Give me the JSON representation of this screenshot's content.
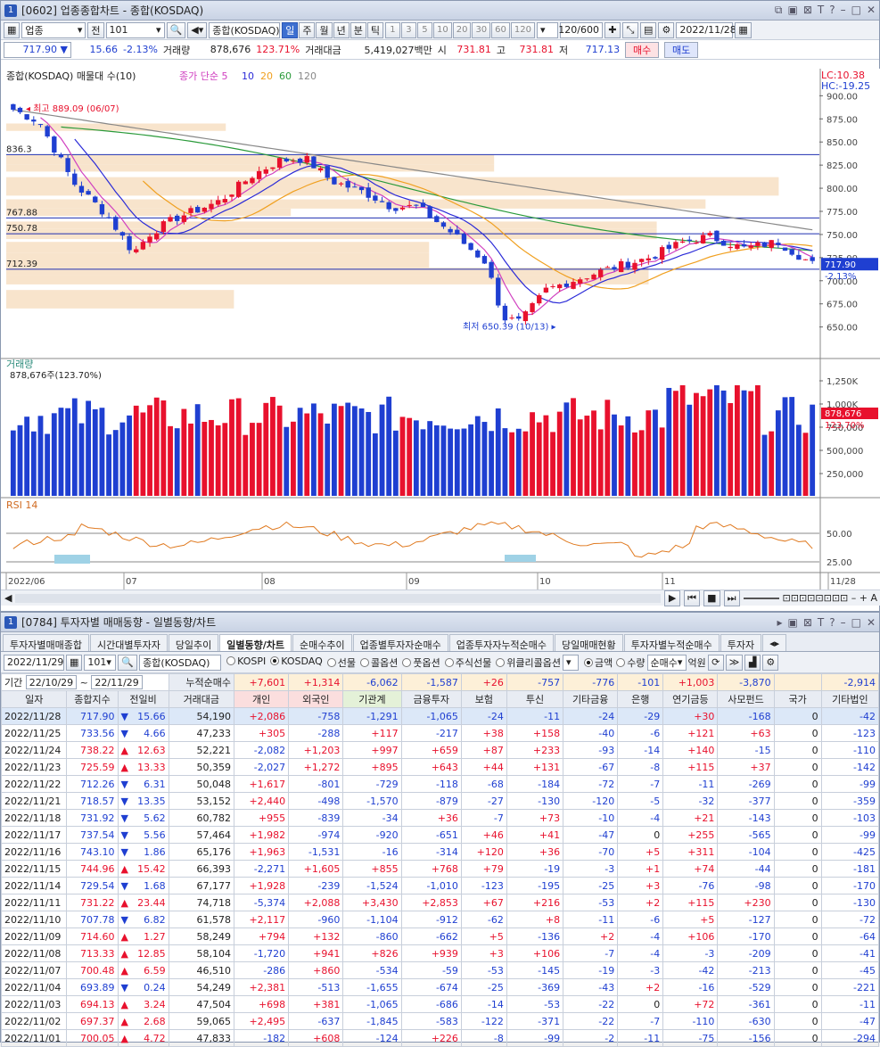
{
  "chart_window": {
    "id": "[0602]",
    "title": "업종종합차트 - 종합(KOSDAQ)"
  },
  "toolbar": {
    "category": "업종",
    "scope": "전",
    "code": "101",
    "name": "종합(KOSDAQ)",
    "periods": [
      "일",
      "주",
      "월",
      "년",
      "분",
      "틱"
    ],
    "active_period": "일",
    "minutes": [
      "1",
      "3",
      "5",
      "10",
      "20",
      "30",
      "60",
      "120"
    ],
    "count": "120/600",
    "date": "2022/11/28"
  },
  "quote": {
    "price": "717.90",
    "change": "15.66",
    "rate": "-2.13%",
    "vol_label": "거래량",
    "vol": "878,676",
    "vol_rate": "123.71%",
    "amt_label": "거래대금",
    "amt": "5,419,027백만",
    "open_label": "시",
    "open": "731.81",
    "high_label": "고",
    "high": "731.81",
    "low_label": "저",
    "low": "717.13",
    "buy": "매수",
    "sell": "매도"
  },
  "price_panel": {
    "legend_name": "종합(KOSDAQ) 매물대 수(10)",
    "ma_label": "종가 단순 5",
    "ma": [
      "10",
      "20",
      "60",
      "120"
    ],
    "lc": "LC:10.38",
    "hc": "HC:-19.25",
    "high_note": "최고 889.09 (06/07)",
    "low_note": "최저 650.39 (10/13)",
    "levels": [
      "836.3",
      "767.88",
      "750.78",
      "712.39"
    ],
    "last": "717.90",
    "last_rate": "-2.13%"
  },
  "volume_panel": {
    "label": "거래량",
    "note": "878,676주(123.70%)",
    "last": "878,676",
    "last_rate": "123.70%"
  },
  "rsi_panel": {
    "label": "RSI 14"
  },
  "x_labels": [
    "2022/06",
    "07",
    "08",
    "09",
    "10",
    "11",
    "11/28"
  ],
  "chart_data": {
    "type": "candlestick",
    "ylim": [
      640,
      910
    ],
    "yticks": [
      650,
      675,
      700,
      725,
      750,
      775,
      800,
      825,
      850,
      875,
      900
    ],
    "volume_ticks": [
      "1,250K",
      "1,000K",
      "750,000",
      "500,000",
      "250,000"
    ],
    "rsi_ticks": [
      "50.00",
      "25.00"
    ]
  },
  "flow_window": {
    "id": "[0784]",
    "title": "투자자별 매매동향 - 일별동향/차트"
  },
  "flow_tabs": [
    "투자자별매매종합",
    "시간대별투자자",
    "당일추이",
    "일별동향/차트",
    "순매수추이",
    "업종별투자자순매수",
    "업종투자자누적순매수",
    "당일매매현황",
    "투자자별누적순매수",
    "투자자"
  ],
  "flow_active": "일별동향/차트",
  "flow_toolbar": {
    "date": "2022/11/29",
    "code": "101",
    "name": "종합(KOSDAQ)",
    "markets": [
      "KOSPI",
      "KOSDAQ",
      "선물",
      "콜옵션",
      "풋옵션",
      "주식선물",
      "위클리콜옵션"
    ],
    "active_market": "KOSDAQ",
    "units": [
      "금액",
      "수량"
    ],
    "unit_active": "금액",
    "mode": "순매수",
    "unit": "억원"
  },
  "period": {
    "label": "기간",
    "from": "22/10/29",
    "to": "22/11/29",
    "sum_label": "누적순매수",
    "sums": [
      "+7,601",
      "+1,314",
      "-6,062",
      "-1,587",
      "+26",
      "-757",
      "-776",
      "-101",
      "+1,003",
      "-3,870",
      "",
      "-2,914"
    ]
  },
  "columns": [
    "일자",
    "종합지수",
    "전일비",
    "거래대금",
    "개인",
    "외국인",
    "기관계",
    "금융투자",
    "보험",
    "투신",
    "기타금융",
    "은행",
    "연기금등",
    "사모펀드",
    "국가",
    "기타법인"
  ],
  "rows": [
    [
      "2022/11/28",
      "717.90",
      "▼",
      "15.66",
      "54,190",
      "+2,086",
      "-758",
      "-1,291",
      "-1,065",
      "-24",
      "-11",
      "-24",
      "-29",
      "+30",
      "-168",
      "0",
      "-42"
    ],
    [
      "2022/11/25",
      "733.56",
      "▼",
      "4.66",
      "47,233",
      "+305",
      "-288",
      "+117",
      "-217",
      "+38",
      "+158",
      "-40",
      "-6",
      "+121",
      "+63",
      "0",
      "-123"
    ],
    [
      "2022/11/24",
      "738.22",
      "▲",
      "12.63",
      "52,221",
      "-2,082",
      "+1,203",
      "+997",
      "+659",
      "+87",
      "+233",
      "-93",
      "-14",
      "+140",
      "-15",
      "0",
      "-110"
    ],
    [
      "2022/11/23",
      "725.59",
      "▲",
      "13.33",
      "50,359",
      "-2,027",
      "+1,272",
      "+895",
      "+643",
      "+44",
      "+131",
      "-67",
      "-8",
      "+115",
      "+37",
      "0",
      "-142"
    ],
    [
      "2022/11/22",
      "712.26",
      "▼",
      "6.31",
      "50,048",
      "+1,617",
      "-801",
      "-729",
      "-118",
      "-68",
      "-184",
      "-72",
      "-7",
      "-11",
      "-269",
      "0",
      "-99"
    ],
    [
      "2022/11/21",
      "718.57",
      "▼",
      "13.35",
      "53,152",
      "+2,440",
      "-498",
      "-1,570",
      "-879",
      "-27",
      "-130",
      "-120",
      "-5",
      "-32",
      "-377",
      "0",
      "-359"
    ],
    [
      "2022/11/18",
      "731.92",
      "▼",
      "5.62",
      "60,782",
      "+955",
      "-839",
      "-34",
      "+36",
      "-7",
      "+73",
      "-10",
      "-4",
      "+21",
      "-143",
      "0",
      "-103"
    ],
    [
      "2022/11/17",
      "737.54",
      "▼",
      "5.56",
      "57,464",
      "+1,982",
      "-974",
      "-920",
      "-651",
      "+46",
      "+41",
      "-47",
      "0",
      "+255",
      "-565",
      "0",
      "-99"
    ],
    [
      "2022/11/16",
      "743.10",
      "▼",
      "1.86",
      "65,176",
      "+1,963",
      "-1,531",
      "-16",
      "-314",
      "+120",
      "+36",
      "-70",
      "+5",
      "+311",
      "-104",
      "0",
      "-425"
    ],
    [
      "2022/11/15",
      "744.96",
      "▲",
      "15.42",
      "66,393",
      "-2,271",
      "+1,605",
      "+855",
      "+768",
      "+79",
      "-19",
      "-3",
      "+1",
      "+74",
      "-44",
      "0",
      "-181"
    ],
    [
      "2022/11/14",
      "729.54",
      "▼",
      "1.68",
      "67,177",
      "+1,928",
      "-239",
      "-1,524",
      "-1,010",
      "-123",
      "-195",
      "-25",
      "+3",
      "-76",
      "-98",
      "0",
      "-170"
    ],
    [
      "2022/11/11",
      "731.22",
      "▲",
      "23.44",
      "74,718",
      "-5,374",
      "+2,088",
      "+3,430",
      "+2,853",
      "+67",
      "+216",
      "-53",
      "+2",
      "+115",
      "+230",
      "0",
      "-130"
    ],
    [
      "2022/11/10",
      "707.78",
      "▼",
      "6.82",
      "61,578",
      "+2,117",
      "-960",
      "-1,104",
      "-912",
      "-62",
      "+8",
      "-11",
      "-6",
      "+5",
      "-127",
      "0",
      "-72"
    ],
    [
      "2022/11/09",
      "714.60",
      "▲",
      "1.27",
      "58,249",
      "+794",
      "+132",
      "-860",
      "-662",
      "+5",
      "-136",
      "+2",
      "-4",
      "+106",
      "-170",
      "0",
      "-64"
    ],
    [
      "2022/11/08",
      "713.33",
      "▲",
      "12.85",
      "58,104",
      "-1,720",
      "+941",
      "+826",
      "+939",
      "+3",
      "+106",
      "-7",
      "-4",
      "-3",
      "-209",
      "0",
      "-41"
    ],
    [
      "2022/11/07",
      "700.48",
      "▲",
      "6.59",
      "46,510",
      "-286",
      "+860",
      "-534",
      "-59",
      "-53",
      "-145",
      "-19",
      "-3",
      "-42",
      "-213",
      "0",
      "-45"
    ],
    [
      "2022/11/04",
      "693.89",
      "▼",
      "0.24",
      "54,249",
      "+2,381",
      "-513",
      "-1,655",
      "-674",
      "-25",
      "-369",
      "-43",
      "+2",
      "-16",
      "-529",
      "0",
      "-221"
    ],
    [
      "2022/11/03",
      "694.13",
      "▲",
      "3.24",
      "47,504",
      "+698",
      "+381",
      "-1,065",
      "-686",
      "-14",
      "-53",
      "-22",
      "0",
      "+72",
      "-361",
      "0",
      "-11"
    ],
    [
      "2022/11/02",
      "697.37",
      "▲",
      "2.68",
      "59,065",
      "+2,495",
      "-637",
      "-1,845",
      "-583",
      "-122",
      "-371",
      "-22",
      "-7",
      "-110",
      "-630",
      "0",
      "-47"
    ],
    [
      "2022/11/01",
      "700.05",
      "▲",
      "4.72",
      "47,833",
      "-182",
      "+608",
      "-124",
      "+226",
      "-8",
      "-99",
      "-2",
      "-11",
      "-75",
      "-156",
      "0",
      "-294"
    ]
  ],
  "colors": {
    "up": "#e8112d",
    "down": "#1f3fd1",
    "ma5": "#d040c0",
    "ma10": "#2b2bd8",
    "ma20": "#f0a020",
    "ma60": "#2a9a3a",
    "ma120": "#888888",
    "band": "#f8e4cc"
  }
}
